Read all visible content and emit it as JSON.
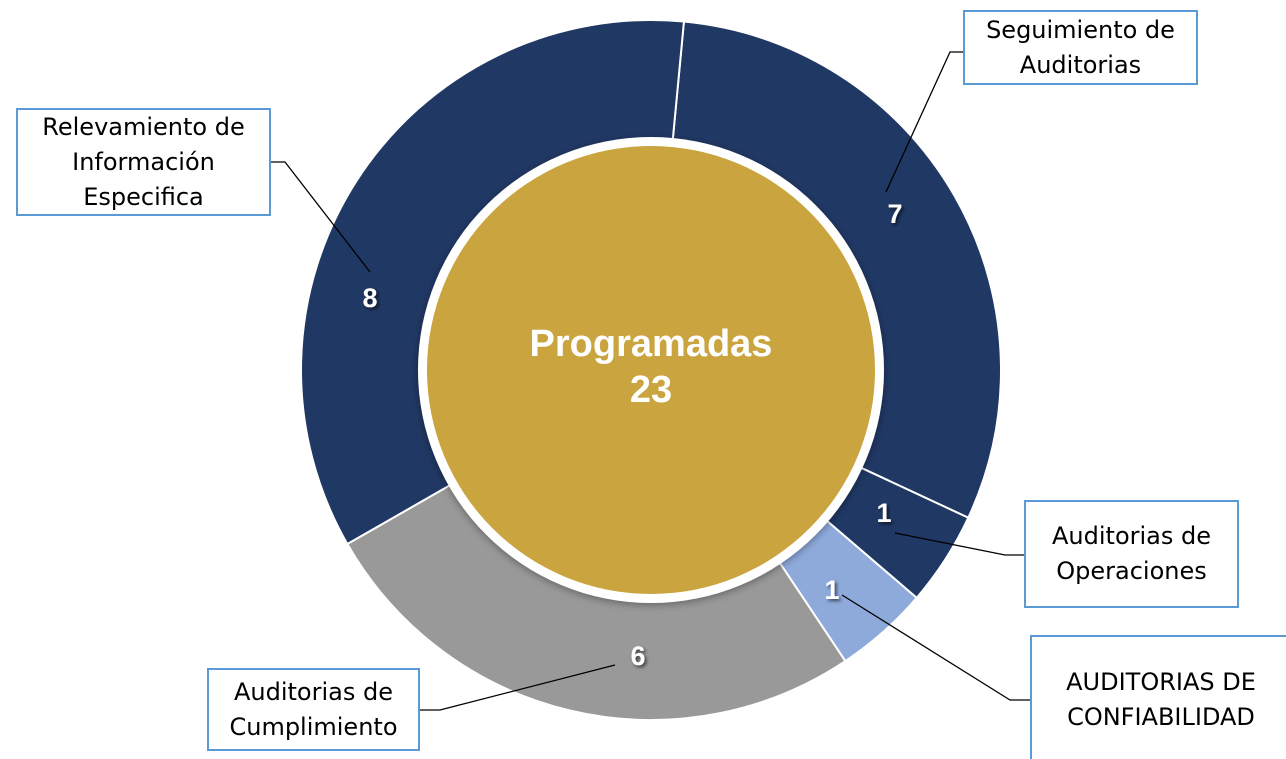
{
  "chart_data": {
    "type": "donut",
    "categories": [
      "Seguimiento de\nAuditorias",
      "Auditorias de\nOperaciones",
      "AUDITORIAS DE\nCONFIABILIDAD",
      "Auditorias de\nCumplimiento",
      "Relevamiento de\nInformación\nEspecifica"
    ],
    "values": [
      7,
      1,
      1,
      6,
      8
    ],
    "colors": [
      "#203864",
      "#203864",
      "#8eaadb",
      "#999999",
      "#203864"
    ],
    "center_label": "Programadas",
    "center_value": 23,
    "center_color": "#c9a43f"
  }
}
